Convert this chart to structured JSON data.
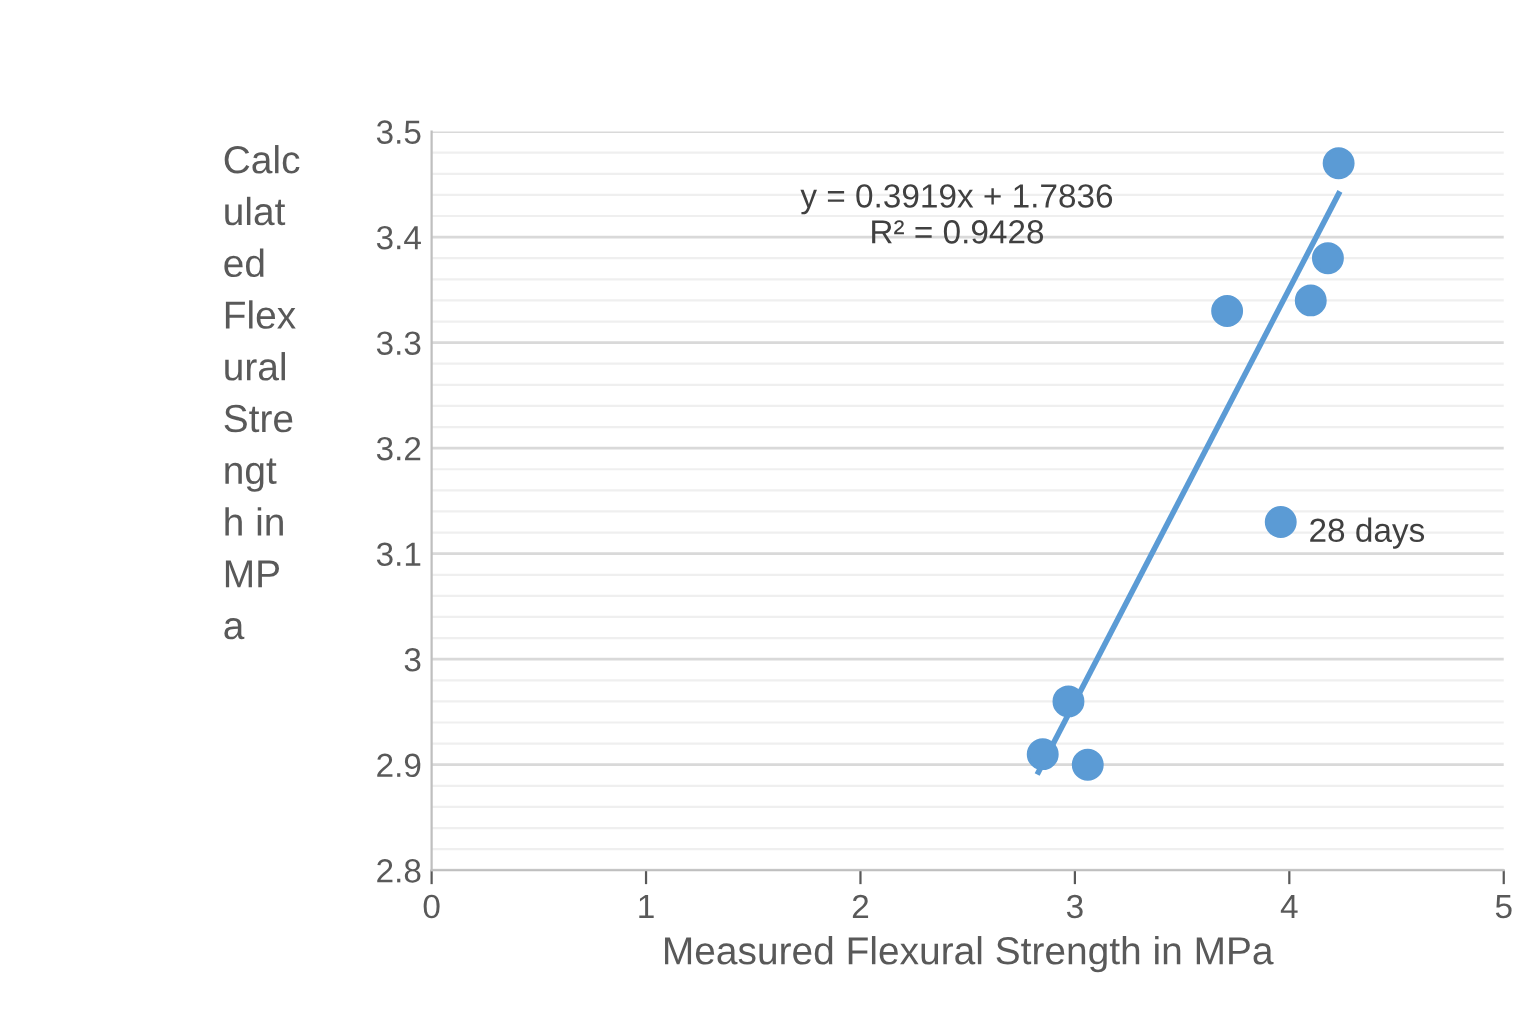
{
  "chart_data": {
    "type": "scatter",
    "xlabel": "Measured Flexural Strength in MPa",
    "ylabel": "Calc\nulat\ned\nFlex\nural\nStre\nngt\nh in\nMP\na",
    "series": [
      {
        "color": "#5b9bd5",
        "marker": "circle",
        "x": [
          4.23,
          4.18,
          4.1,
          3.71,
          3.96,
          2.97,
          2.85,
          3.06
        ],
        "values": [
          3.47,
          3.38,
          3.34,
          3.33,
          3.13,
          2.96,
          2.91,
          2.9
        ]
      },
      {
        "type": "line",
        "marker": "none",
        "color": "#5b9bd5",
        "x": [
          2.83,
          4.23
        ],
        "values": [
          2.893,
          3.441
        ]
      }
    ],
    "annotations": [
      "y = 0.3919x + 1.7836\nR² = 0.9428",
      {
        "text": "28 days",
        "x": 3.96,
        "y": 3.13
      }
    ],
    "xlim": [
      0,
      5
    ],
    "xticks": [
      0,
      1,
      2,
      3,
      4,
      5
    ],
    "ylim": [
      2.8,
      3.5
    ],
    "yticks": [
      2.8,
      2.9,
      3,
      3.1,
      3.2,
      3.3,
      3.4,
      3.5
    ],
    "grid": "y",
    "legend": false
  }
}
